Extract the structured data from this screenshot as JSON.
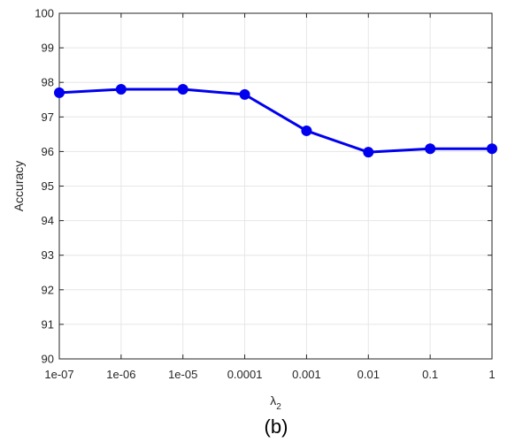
{
  "chart_data": {
    "type": "line",
    "x": [
      "1e-07",
      "1e-06",
      "1e-05",
      "0.0001",
      "0.001",
      "0.01",
      "0.1",
      "1"
    ],
    "series": [
      {
        "values": [
          97.7,
          97.8,
          97.8,
          97.65,
          96.6,
          95.98,
          96.08,
          96.08
        ]
      }
    ],
    "xlabel": "λ",
    "xlabel_subscript": "2",
    "ylabel": "Accuracy",
    "ylim": [
      90,
      100
    ],
    "yticks": [
      90,
      91,
      92,
      93,
      94,
      95,
      96,
      97,
      98,
      99,
      100
    ],
    "grid": true,
    "caption": "(b)",
    "colors": {
      "line": "#0000ee",
      "grid": "#e6e6e6",
      "axis": "#262626"
    }
  }
}
